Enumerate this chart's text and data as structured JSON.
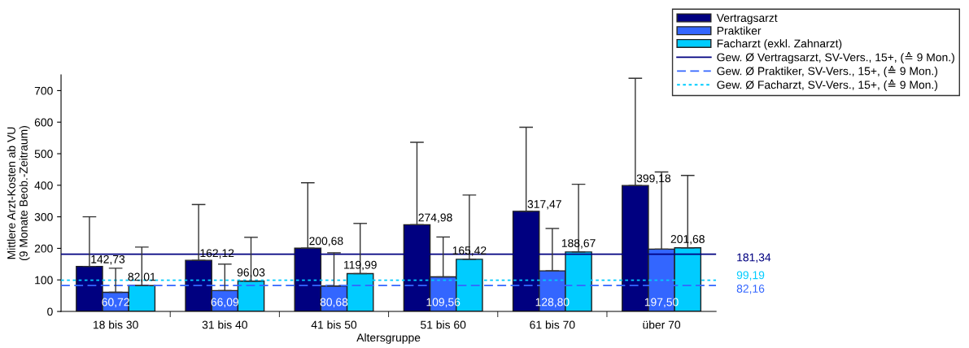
{
  "chart_data": {
    "type": "bar",
    "xlabel": "Altersgruppe",
    "ylabel": "Mittlere Arzt-Kosten ab VU\n(9 Monate Beob.-Zeitraum)",
    "categories": [
      "18 bis 30",
      "31 bis 40",
      "41 bis 50",
      "51 bis 60",
      "61 bis 70",
      "über 70"
    ],
    "series": [
      {
        "name": "Vertragsarzt",
        "color": "#000080",
        "values": [
          142.73,
          162.12,
          200.68,
          274.98,
          317.47,
          399.18
        ],
        "value_labels": [
          "142,73",
          "162,12",
          "200,68",
          "274,98",
          "317,47",
          "399,18"
        ],
        "errors": [
          [
            142.73,
            300
          ],
          [
            162.12,
            339
          ],
          [
            200.68,
            408
          ],
          [
            274.98,
            536
          ],
          [
            317.47,
            584
          ],
          [
            399.18,
            739
          ]
        ]
      },
      {
        "name": "Praktiker",
        "color": "#3366ff",
        "values": [
          60.72,
          66.09,
          80.68,
          109.56,
          128.8,
          197.5
        ],
        "value_labels": [
          "60,72",
          "66,09",
          "80,68",
          "109,56",
          "128,80",
          "197,50"
        ],
        "errors": [
          [
            60.72,
            137
          ],
          [
            66.09,
            150
          ],
          [
            80.68,
            186
          ],
          [
            109.56,
            236
          ],
          [
            128.8,
            263
          ],
          [
            197.5,
            442
          ]
        ]
      },
      {
        "name": "Facharzt (exkl. Zahnarzt)",
        "color": "#00ccff",
        "values": [
          82.01,
          96.03,
          119.99,
          165.42,
          188.67,
          201.68
        ],
        "value_labels": [
          "82,01",
          "96,03",
          "119,99",
          "165,42",
          "188,67",
          "201,68"
        ],
        "errors": [
          [
            82.01,
            204
          ],
          [
            96.03,
            235
          ],
          [
            119.99,
            279
          ],
          [
            165.42,
            369
          ],
          [
            188.67,
            403
          ],
          [
            201.68,
            431
          ]
        ]
      }
    ],
    "ref_lines": [
      {
        "axis": "y",
        "value": 181.34,
        "label": "Gew. Ø Vertragsarzt, SV-Vers., 15+, (≙ 9 Mon.)",
        "color": "#000080",
        "line_style": "solid"
      },
      {
        "axis": "y",
        "value": 82.16,
        "label": "Gew. Ø Praktiker, SV-Vers., 15+, (≙ 9 Mon.)",
        "color": "#3366ff",
        "line_style": "dashed"
      },
      {
        "axis": "y",
        "value": 99.19,
        "label": "Gew. Ø Facharzt, SV-Vers., 15+, (≙ 9 Mon.)",
        "color": "#00ccff",
        "line_style": "dotted"
      }
    ],
    "annotations": [
      "181,34",
      "82,16",
      "99,19"
    ],
    "ylim": [
      0,
      750
    ],
    "yticks": [
      0,
      100,
      200,
      300,
      400,
      500,
      600,
      700
    ],
    "grid": false,
    "legend": "top right"
  }
}
